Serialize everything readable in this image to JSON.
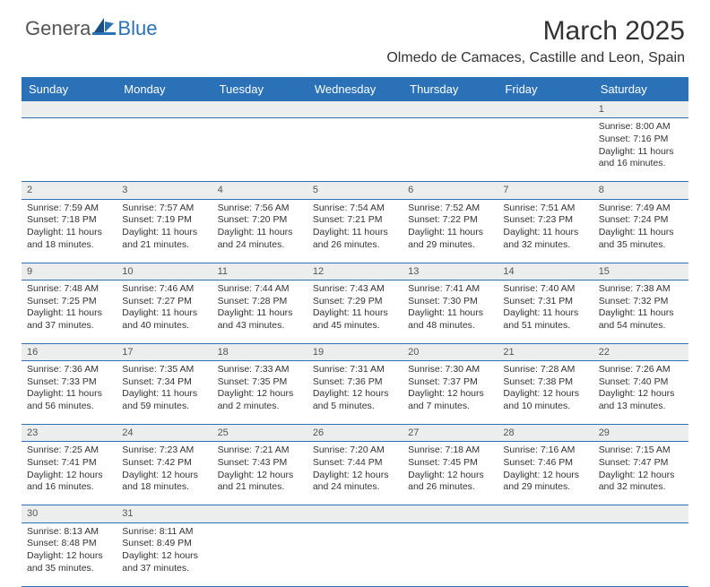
{
  "brand": {
    "general": "Genera",
    "blue": "Blue"
  },
  "title": "March 2025",
  "location": "Olmedo de Camaces, Castille and Leon, Spain",
  "colors": {
    "header_bg": "#2a71b8",
    "header_text": "#ffffff",
    "daynum_bg": "#eceded",
    "border": "#2a71b8",
    "text": "#333333"
  },
  "day_names": [
    "Sunday",
    "Monday",
    "Tuesday",
    "Wednesday",
    "Thursday",
    "Friday",
    "Saturday"
  ],
  "weeks": [
    [
      null,
      null,
      null,
      null,
      null,
      null,
      {
        "n": "1",
        "sr": "Sunrise: 8:00 AM",
        "ss": "Sunset: 7:16 PM",
        "dl1": "Daylight: 11 hours",
        "dl2": "and 16 minutes."
      }
    ],
    [
      {
        "n": "2",
        "sr": "Sunrise: 7:59 AM",
        "ss": "Sunset: 7:18 PM",
        "dl1": "Daylight: 11 hours",
        "dl2": "and 18 minutes."
      },
      {
        "n": "3",
        "sr": "Sunrise: 7:57 AM",
        "ss": "Sunset: 7:19 PM",
        "dl1": "Daylight: 11 hours",
        "dl2": "and 21 minutes."
      },
      {
        "n": "4",
        "sr": "Sunrise: 7:56 AM",
        "ss": "Sunset: 7:20 PM",
        "dl1": "Daylight: 11 hours",
        "dl2": "and 24 minutes."
      },
      {
        "n": "5",
        "sr": "Sunrise: 7:54 AM",
        "ss": "Sunset: 7:21 PM",
        "dl1": "Daylight: 11 hours",
        "dl2": "and 26 minutes."
      },
      {
        "n": "6",
        "sr": "Sunrise: 7:52 AM",
        "ss": "Sunset: 7:22 PM",
        "dl1": "Daylight: 11 hours",
        "dl2": "and 29 minutes."
      },
      {
        "n": "7",
        "sr": "Sunrise: 7:51 AM",
        "ss": "Sunset: 7:23 PM",
        "dl1": "Daylight: 11 hours",
        "dl2": "and 32 minutes."
      },
      {
        "n": "8",
        "sr": "Sunrise: 7:49 AM",
        "ss": "Sunset: 7:24 PM",
        "dl1": "Daylight: 11 hours",
        "dl2": "and 35 minutes."
      }
    ],
    [
      {
        "n": "9",
        "sr": "Sunrise: 7:48 AM",
        "ss": "Sunset: 7:25 PM",
        "dl1": "Daylight: 11 hours",
        "dl2": "and 37 minutes."
      },
      {
        "n": "10",
        "sr": "Sunrise: 7:46 AM",
        "ss": "Sunset: 7:27 PM",
        "dl1": "Daylight: 11 hours",
        "dl2": "and 40 minutes."
      },
      {
        "n": "11",
        "sr": "Sunrise: 7:44 AM",
        "ss": "Sunset: 7:28 PM",
        "dl1": "Daylight: 11 hours",
        "dl2": "and 43 minutes."
      },
      {
        "n": "12",
        "sr": "Sunrise: 7:43 AM",
        "ss": "Sunset: 7:29 PM",
        "dl1": "Daylight: 11 hours",
        "dl2": "and 45 minutes."
      },
      {
        "n": "13",
        "sr": "Sunrise: 7:41 AM",
        "ss": "Sunset: 7:30 PM",
        "dl1": "Daylight: 11 hours",
        "dl2": "and 48 minutes."
      },
      {
        "n": "14",
        "sr": "Sunrise: 7:40 AM",
        "ss": "Sunset: 7:31 PM",
        "dl1": "Daylight: 11 hours",
        "dl2": "and 51 minutes."
      },
      {
        "n": "15",
        "sr": "Sunrise: 7:38 AM",
        "ss": "Sunset: 7:32 PM",
        "dl1": "Daylight: 11 hours",
        "dl2": "and 54 minutes."
      }
    ],
    [
      {
        "n": "16",
        "sr": "Sunrise: 7:36 AM",
        "ss": "Sunset: 7:33 PM",
        "dl1": "Daylight: 11 hours",
        "dl2": "and 56 minutes."
      },
      {
        "n": "17",
        "sr": "Sunrise: 7:35 AM",
        "ss": "Sunset: 7:34 PM",
        "dl1": "Daylight: 11 hours",
        "dl2": "and 59 minutes."
      },
      {
        "n": "18",
        "sr": "Sunrise: 7:33 AM",
        "ss": "Sunset: 7:35 PM",
        "dl1": "Daylight: 12 hours",
        "dl2": "and 2 minutes."
      },
      {
        "n": "19",
        "sr": "Sunrise: 7:31 AM",
        "ss": "Sunset: 7:36 PM",
        "dl1": "Daylight: 12 hours",
        "dl2": "and 5 minutes."
      },
      {
        "n": "20",
        "sr": "Sunrise: 7:30 AM",
        "ss": "Sunset: 7:37 PM",
        "dl1": "Daylight: 12 hours",
        "dl2": "and 7 minutes."
      },
      {
        "n": "21",
        "sr": "Sunrise: 7:28 AM",
        "ss": "Sunset: 7:38 PM",
        "dl1": "Daylight: 12 hours",
        "dl2": "and 10 minutes."
      },
      {
        "n": "22",
        "sr": "Sunrise: 7:26 AM",
        "ss": "Sunset: 7:40 PM",
        "dl1": "Daylight: 12 hours",
        "dl2": "and 13 minutes."
      }
    ],
    [
      {
        "n": "23",
        "sr": "Sunrise: 7:25 AM",
        "ss": "Sunset: 7:41 PM",
        "dl1": "Daylight: 12 hours",
        "dl2": "and 16 minutes."
      },
      {
        "n": "24",
        "sr": "Sunrise: 7:23 AM",
        "ss": "Sunset: 7:42 PM",
        "dl1": "Daylight: 12 hours",
        "dl2": "and 18 minutes."
      },
      {
        "n": "25",
        "sr": "Sunrise: 7:21 AM",
        "ss": "Sunset: 7:43 PM",
        "dl1": "Daylight: 12 hours",
        "dl2": "and 21 minutes."
      },
      {
        "n": "26",
        "sr": "Sunrise: 7:20 AM",
        "ss": "Sunset: 7:44 PM",
        "dl1": "Daylight: 12 hours",
        "dl2": "and 24 minutes."
      },
      {
        "n": "27",
        "sr": "Sunrise: 7:18 AM",
        "ss": "Sunset: 7:45 PM",
        "dl1": "Daylight: 12 hours",
        "dl2": "and 26 minutes."
      },
      {
        "n": "28",
        "sr": "Sunrise: 7:16 AM",
        "ss": "Sunset: 7:46 PM",
        "dl1": "Daylight: 12 hours",
        "dl2": "and 29 minutes."
      },
      {
        "n": "29",
        "sr": "Sunrise: 7:15 AM",
        "ss": "Sunset: 7:47 PM",
        "dl1": "Daylight: 12 hours",
        "dl2": "and 32 minutes."
      }
    ],
    [
      {
        "n": "30",
        "sr": "Sunrise: 8:13 AM",
        "ss": "Sunset: 8:48 PM",
        "dl1": "Daylight: 12 hours",
        "dl2": "and 35 minutes."
      },
      {
        "n": "31",
        "sr": "Sunrise: 8:11 AM",
        "ss": "Sunset: 8:49 PM",
        "dl1": "Daylight: 12 hours",
        "dl2": "and 37 minutes."
      },
      null,
      null,
      null,
      null,
      null
    ]
  ]
}
